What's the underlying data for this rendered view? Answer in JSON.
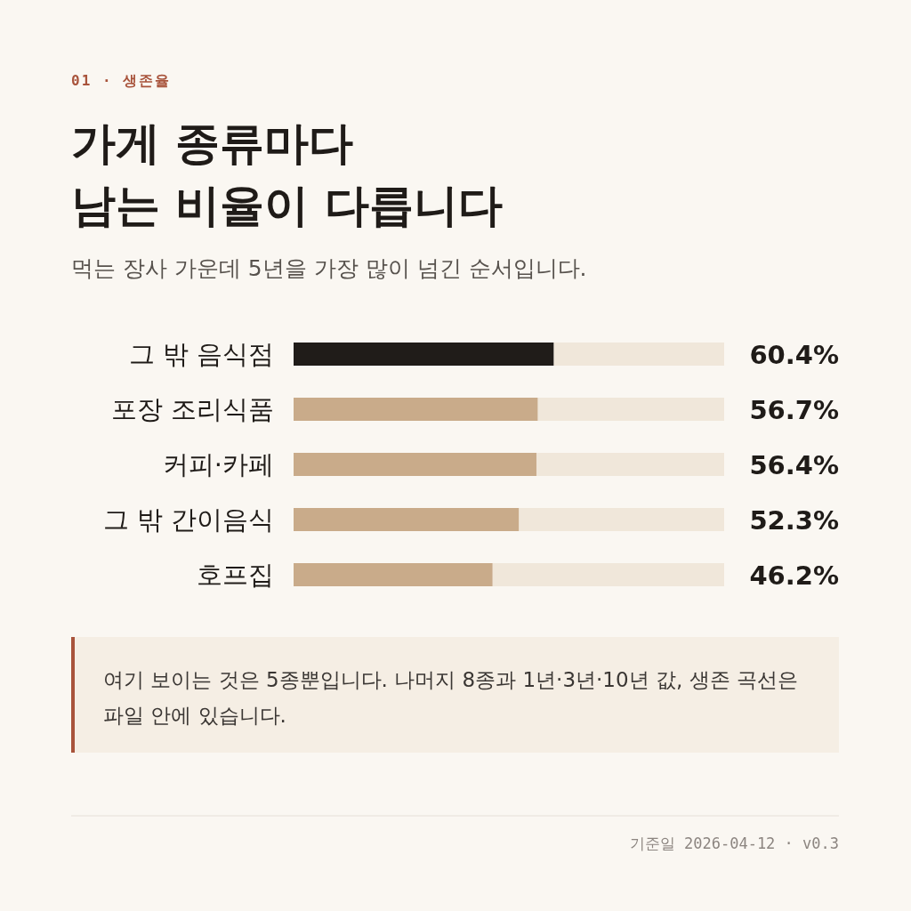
{
  "chart_data": {
    "type": "bar",
    "orientation": "horizontal",
    "title": "가게 종류마다\n남는 비율이 다릅니다",
    "subtitle": "먹는 장사 가운데 5년을 가장 많이 넘긴 순서입니다.",
    "categories": [
      "그 밖 음식점",
      "포장 조리식품",
      "커피·카페",
      "그 밖 간이음식",
      "호프집"
    ],
    "values": [
      60.4,
      56.7,
      56.4,
      52.3,
      46.2
    ],
    "colors": [
      "#201c19",
      "#c9ab8a",
      "#c9ab8a",
      "#c9ab8a",
      "#c9ab8a"
    ],
    "value_labels": [
      "60.4%",
      "56.7%",
      "56.4%",
      "52.3%",
      "46.2%"
    ],
    "xlim": [
      0,
      100
    ],
    "annotations": [
      "01 · 생존율",
      "여기 보이는 것은 5종뿐입니다. 나머지 8종과 1년·3년·10년 값, 생존 곡선은 파일 안에 있습니다.",
      "기준일 2026-04-12 · v0.3"
    ]
  }
}
